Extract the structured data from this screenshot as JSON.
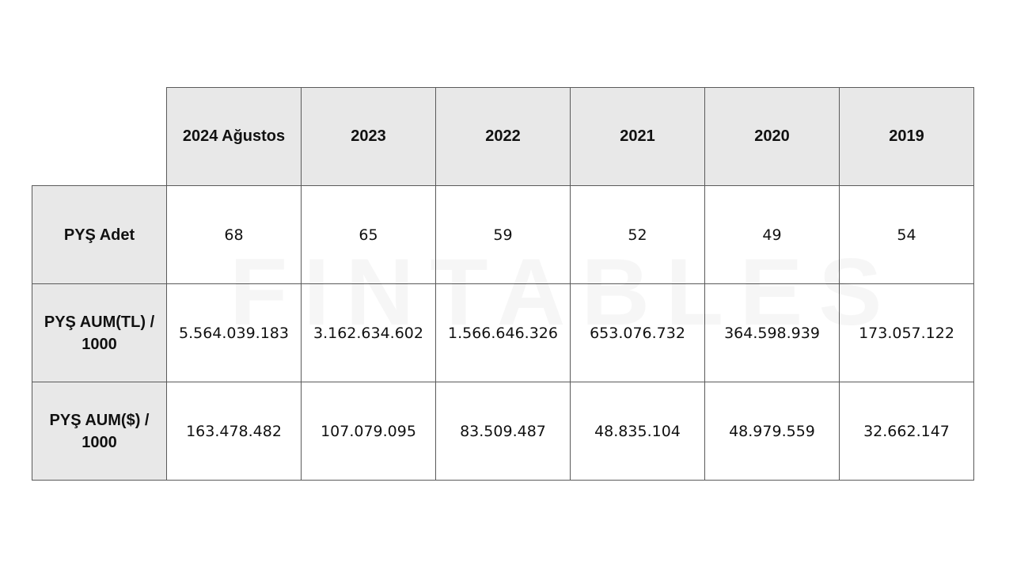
{
  "watermark": "FINTABLES",
  "chart_data": {
    "type": "table",
    "columns": [
      "2024 Ağustos",
      "2023",
      "2022",
      "2021",
      "2020",
      "2019"
    ],
    "rows": [
      {
        "label": "PYŞ Adet",
        "values": [
          "68",
          "65",
          "59",
          "52",
          "49",
          "54"
        ]
      },
      {
        "label": "PYŞ AUM(TL) / 1000",
        "values": [
          "5.564.039.183",
          "3.162.634.602",
          "1.566.646.326",
          "653.076.732",
          "364.598.939",
          "173.057.122"
        ]
      },
      {
        "label": "PYŞ AUM($) / 1000",
        "values": [
          "163.478.482",
          "107.079.095",
          "83.509.487",
          "48.835.104",
          "48.979.559",
          "32.662.147"
        ]
      }
    ]
  }
}
